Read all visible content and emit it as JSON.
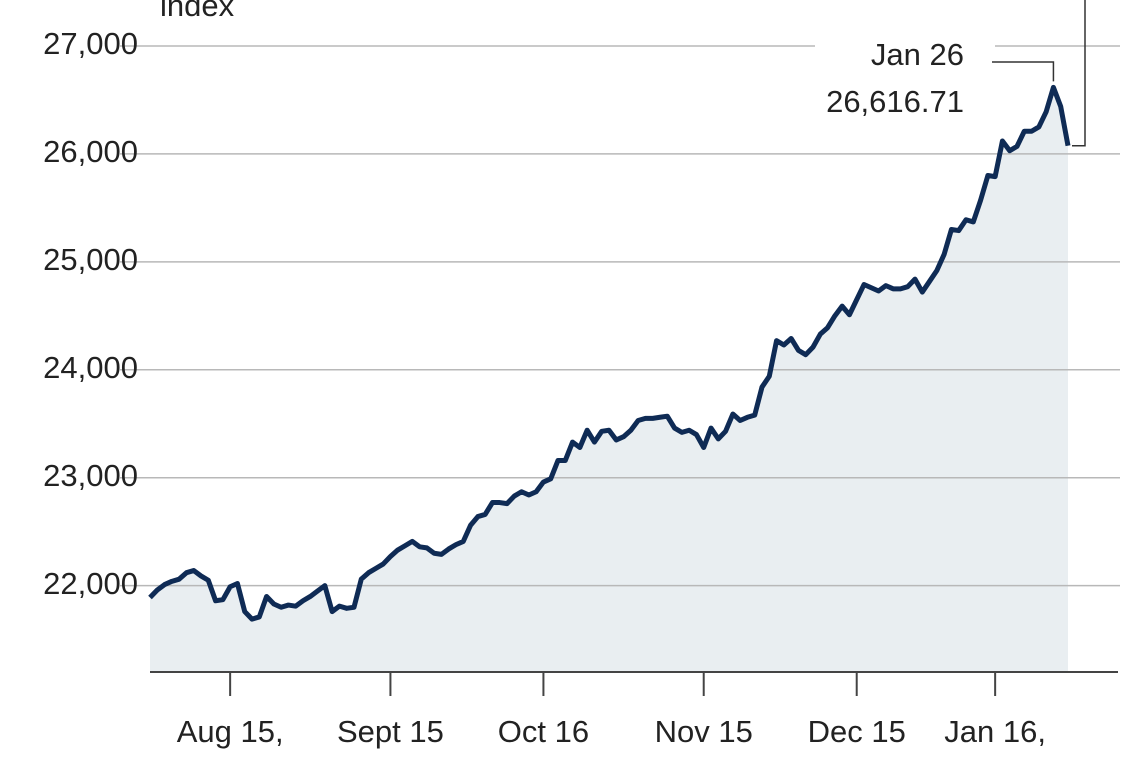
{
  "chart_data": {
    "type": "area-line",
    "y_label": "index",
    "color": "#0f2b55",
    "fill_color": "#e9eef1",
    "x": [
      "Jul 31",
      "Aug 1",
      "Aug 2",
      "Aug 3",
      "Aug 4",
      "Aug 7",
      "Aug 8",
      "Aug 9",
      "Aug 10",
      "Aug 11",
      "Aug 14",
      "Aug 15",
      "Aug 16",
      "Aug 17",
      "Aug 18",
      "Aug 21",
      "Aug 22",
      "Aug 23",
      "Aug 24",
      "Aug 25",
      "Aug 28",
      "Aug 29",
      "Aug 30",
      "Aug 31",
      "Sept 1",
      "Sept 5",
      "Sept 6",
      "Sept 7",
      "Sept 8",
      "Sept 11",
      "Sept 12",
      "Sept 13",
      "Sept 14",
      "Sept 15",
      "Sept 18",
      "Sept 19",
      "Sept 20",
      "Sept 21",
      "Sept 22",
      "Sept 25",
      "Sept 26",
      "Sept 27",
      "Sept 28",
      "Sept 29",
      "Oct 2",
      "Oct 3",
      "Oct 4",
      "Oct 5",
      "Oct 6",
      "Oct 9",
      "Oct 10",
      "Oct 11",
      "Oct 12",
      "Oct 13",
      "Oct 16",
      "Oct 17",
      "Oct 18",
      "Oct 19",
      "Oct 20",
      "Oct 23",
      "Oct 24",
      "Oct 25",
      "Oct 26",
      "Oct 27",
      "Oct 30",
      "Oct 31",
      "Nov 1",
      "Nov 2",
      "Nov 3",
      "Nov 6",
      "Nov 7",
      "Nov 8",
      "Nov 9",
      "Nov 10",
      "Nov 13",
      "Nov 14",
      "Nov 15",
      "Nov 16",
      "Nov 17",
      "Nov 20",
      "Nov 21",
      "Nov 22",
      "Nov 24",
      "Nov 27",
      "Nov 28",
      "Nov 29",
      "Nov 30",
      "Dec 1",
      "Dec 4",
      "Dec 5",
      "Dec 6",
      "Dec 7",
      "Dec 8",
      "Dec 11",
      "Dec 12",
      "Dec 13",
      "Dec 14",
      "Dec 15",
      "Dec 18",
      "Dec 19",
      "Dec 20",
      "Dec 21",
      "Dec 22",
      "Dec 26",
      "Dec 27",
      "Dec 28",
      "Dec 29",
      "Jan 2",
      "Jan 3",
      "Jan 4",
      "Jan 5",
      "Jan 8",
      "Jan 9",
      "Jan 10",
      "Jan 11",
      "Jan 12",
      "Jan 16",
      "Jan 17",
      "Jan 18",
      "Jan 19",
      "Jan 22",
      "Jan 23",
      "Jan 24",
      "Jan 25",
      "Jan 26",
      "Jan 29",
      "Jan 30"
    ],
    "values": [
      21890,
      21960,
      22010,
      22040,
      22060,
      22120,
      22140,
      22090,
      22050,
      21860,
      21870,
      21990,
      22020,
      21760,
      21690,
      21710,
      21900,
      21830,
      21800,
      21820,
      21810,
      21860,
      21900,
      21950,
      22000,
      21760,
      21810,
      21790,
      21800,
      22060,
      22120,
      22160,
      22200,
      22270,
      22330,
      22370,
      22410,
      22360,
      22350,
      22300,
      22290,
      22340,
      22380,
      22410,
      22560,
      22640,
      22660,
      22770,
      22770,
      22760,
      22830,
      22870,
      22840,
      22870,
      22960,
      22990,
      23160,
      23160,
      23330,
      23280,
      23440,
      23330,
      23430,
      23440,
      23350,
      23380,
      23440,
      23530,
      23550,
      23550,
      23560,
      23570,
      23460,
      23420,
      23440,
      23400,
      23280,
      23460,
      23360,
      23430,
      23590,
      23530,
      23560,
      23580,
      23840,
      23940,
      24270,
      24230,
      24290,
      24180,
      24140,
      24210,
      24330,
      24390,
      24500,
      24590,
      24510,
      24650,
      24790,
      24760,
      24730,
      24780,
      24750,
      24750,
      24770,
      24840,
      24720,
      24820,
      24920,
      25070,
      25300,
      25290,
      25390,
      25370,
      25570,
      25800,
      25790,
      26120,
      26030,
      26070,
      26210,
      26210,
      26250,
      26390,
      26616.71,
      26439,
      26076
    ],
    "ylim": [
      21200,
      27000
    ],
    "yticks": [
      {
        "value": 22000,
        "label": "22,000"
      },
      {
        "value": 23000,
        "label": "23,000"
      },
      {
        "value": 24000,
        "label": "24,000"
      },
      {
        "value": 25000,
        "label": "25,000"
      },
      {
        "value": 26000,
        "label": "26,000"
      },
      {
        "value": 27000,
        "label": "27,000"
      }
    ],
    "xticks": [
      {
        "value": "Aug 15",
        "label": "Aug 15,"
      },
      "Sept 15",
      "Oct 16",
      "Nov 15",
      "Dec 15",
      {
        "value": "Jan 16",
        "label": "Jan 16,"
      }
    ],
    "grid": true,
    "annotation": {
      "x": "Jan 26",
      "label": "26,616.71"
    }
  }
}
